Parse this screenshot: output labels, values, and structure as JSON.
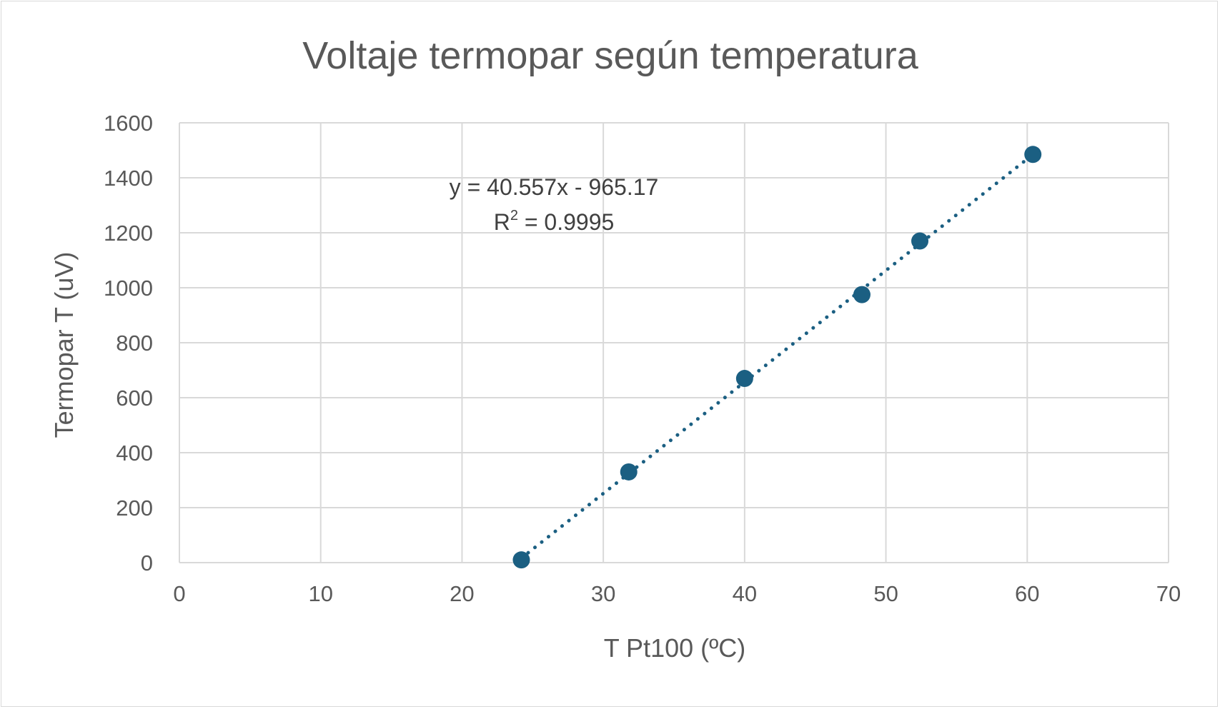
{
  "chart_data": {
    "type": "scatter",
    "title": "Voltaje termopar según temperatura",
    "xlabel": "T Pt100 (ºC)",
    "ylabel": "Termopar T  (uV)",
    "xlim": [
      0,
      70
    ],
    "ylim": [
      0,
      1600
    ],
    "x_ticks": [
      "0",
      "10",
      "20",
      "30",
      "40",
      "50",
      "60",
      "70"
    ],
    "y_ticks": [
      "0",
      "200",
      "400",
      "600",
      "800",
      "1000",
      "1200",
      "1400",
      "1600"
    ],
    "grid": true,
    "legend": "none",
    "series": [
      {
        "x": [
          24.2,
          31.8,
          40.0,
          48.3,
          52.4,
          60.4
        ],
        "y": [
          10,
          330,
          670,
          975,
          1170,
          1485
        ],
        "marker_color": "#1b5f82"
      }
    ],
    "trendline": {
      "type": "linear",
      "slope": 40.557,
      "intercept": -965.17,
      "x_range": [
        24.2,
        60.4
      ],
      "color": "#1b5f82",
      "style": "dotted",
      "equation": "y = 40.557x - 965.17",
      "r2_prefix": "R",
      "r2_sup": "2",
      "r2_value": " = 0.9995"
    }
  }
}
